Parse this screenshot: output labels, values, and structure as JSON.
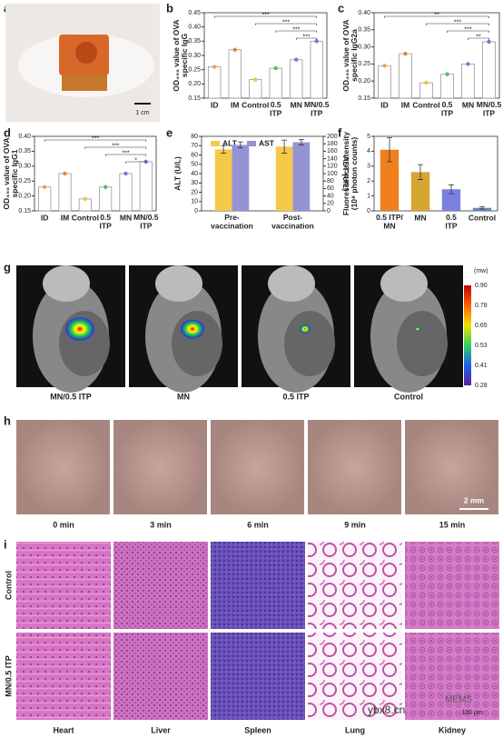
{
  "chart_data": [
    {
      "type": "bar",
      "label": "b",
      "ylabel": [
        "OD₄₅₀ value of OVA",
        "specific IgG"
      ],
      "categories": [
        "ID",
        "IM",
        "Control",
        "0.5\nITP",
        "MN",
        "MN/0.5\nITP"
      ],
      "values": [
        0.26,
        0.32,
        0.215,
        0.255,
        0.285,
        0.35
      ],
      "colors": [
        "#f0a050",
        "#e08a30",
        "#e8c840",
        "#50c060",
        "#6a80d8",
        "#8a70c8"
      ],
      "ylim": [
        0.15,
        0.45
      ],
      "yticks": [
        0.15,
        {
          "value": 0.2,
          "label": "0.20"
        },
        0.25,
        {
          "value": 0.3,
          "label": "0.30"
        },
        0.35,
        {
          "value": 0.4,
          "label": "0.40"
        },
        0.45
      ],
      "annotations": [
        "***",
        "***",
        "***",
        "***"
      ]
    },
    {
      "type": "bar",
      "label": "c",
      "ylabel": [
        "OD₄₅₀ value of OVA",
        "specific IgG2a"
      ],
      "categories": [
        "ID",
        "IM",
        "Control",
        "0.5\nITP",
        "MN",
        "MN/0.5\nITP"
      ],
      "values": [
        0.245,
        0.28,
        0.195,
        0.22,
        0.25,
        0.315
      ],
      "colors": [
        "#f0a050",
        "#e08a30",
        "#e8c840",
        "#50c060",
        "#6a80d8",
        "#8a70c8"
      ],
      "ylim": [
        0.15,
        0.4
      ],
      "yticks": [
        0.15,
        {
          "value": 0.2,
          "label": "0.20"
        },
        0.25,
        {
          "value": 0.3,
          "label": "0.30"
        },
        0.35,
        {
          "value": 0.4,
          "label": "0.40"
        }
      ],
      "annotations": [
        "**",
        "***",
        "***",
        "**"
      ]
    },
    {
      "type": "bar",
      "label": "d",
      "ylabel": [
        "OD₄₅₀ value of OVA",
        "specific IgG1"
      ],
      "categories": [
        "ID",
        "IM",
        "Control",
        "0.5\nITP",
        "MN",
        "MN/0.5\nITP"
      ],
      "values": [
        0.23,
        0.275,
        0.19,
        0.23,
        0.275,
        0.315
      ],
      "colors": [
        "#f0a050",
        "#e08a30",
        "#e8c840",
        "#50c060",
        "#6a80d8",
        "#8a70c8"
      ],
      "ylim": [
        0.15,
        0.4
      ],
      "yticks": [
        0.15,
        {
          "value": 0.2,
          "label": "0.20"
        },
        0.25,
        {
          "value": 0.3,
          "label": "0.30"
        },
        0.35,
        {
          "value": 0.4,
          "label": "0.40"
        }
      ],
      "annotations": [
        "***",
        "***",
        "***",
        "*"
      ]
    },
    {
      "type": "groupbar",
      "label": "e",
      "ylabel": [
        "ALT (U/L)"
      ],
      "y2label": "AST (U/L)",
      "categories": [
        "Pre-\nvaccination",
        "Post-\nvaccination"
      ],
      "series": [
        {
          "name": "ALT",
          "color": "#f6c94a",
          "values": [
            66,
            69
          ],
          "errors": [
            4,
            7
          ]
        },
        {
          "name": "AST",
          "color": "#9494d4",
          "values": [
            177,
            184
          ],
          "errors": [
            8,
            7
          ],
          "axis": "y2"
        }
      ],
      "ylim": [
        0,
        80
      ],
      "yticks": [
        0,
        10,
        20,
        30,
        40,
        50,
        60,
        70,
        80
      ],
      "y2lim": [
        0,
        200
      ],
      "y2ticks": [
        0,
        20,
        40,
        60,
        80,
        100,
        120,
        140,
        160,
        180,
        200
      ]
    },
    {
      "type": "errbar",
      "label": "f",
      "ylabel": [
        "Fluorescence intensity",
        "(10⁸ photon counts)"
      ],
      "categories": [
        "0.5 ITP/\nMN",
        "MN",
        "0.5\nITP",
        "Control"
      ],
      "values": [
        4.1,
        2.6,
        1.45,
        0.2
      ],
      "errors": [
        0.8,
        0.5,
        0.3,
        0.08
      ],
      "colors": [
        "#f07f1e",
        "#d6a730",
        "#7b80e0",
        "#6c86b8"
      ],
      "ylim": [
        0,
        5
      ],
      "yticks": [
        0,
        1,
        2,
        3,
        4,
        5
      ]
    }
  ],
  "panel_a": {
    "label": "a",
    "scale": "1 cm"
  },
  "panel_g": {
    "label": "g",
    "images": [
      "MN/0.5 ITP",
      "MN",
      "0.5 ITP",
      "Control"
    ],
    "unit": "(mw)",
    "colorbar": [
      "0.90",
      "0.78",
      "0.65",
      "0.53",
      "0.41",
      "0.28"
    ]
  },
  "panel_h": {
    "label": "h",
    "images": [
      "0 min",
      "3 min",
      "6 min",
      "9 min",
      "15 min"
    ],
    "scale": "2 mm"
  },
  "panel_i": {
    "label": "i",
    "rows": [
      "Control",
      "MN/0.5 ITP"
    ],
    "columns": [
      "Heart",
      "Liver",
      "Spleen",
      "Lung",
      "Kidney"
    ],
    "scale": "100 μm"
  },
  "watermark": [
    "ybx8.cn",
    "MEMS"
  ]
}
